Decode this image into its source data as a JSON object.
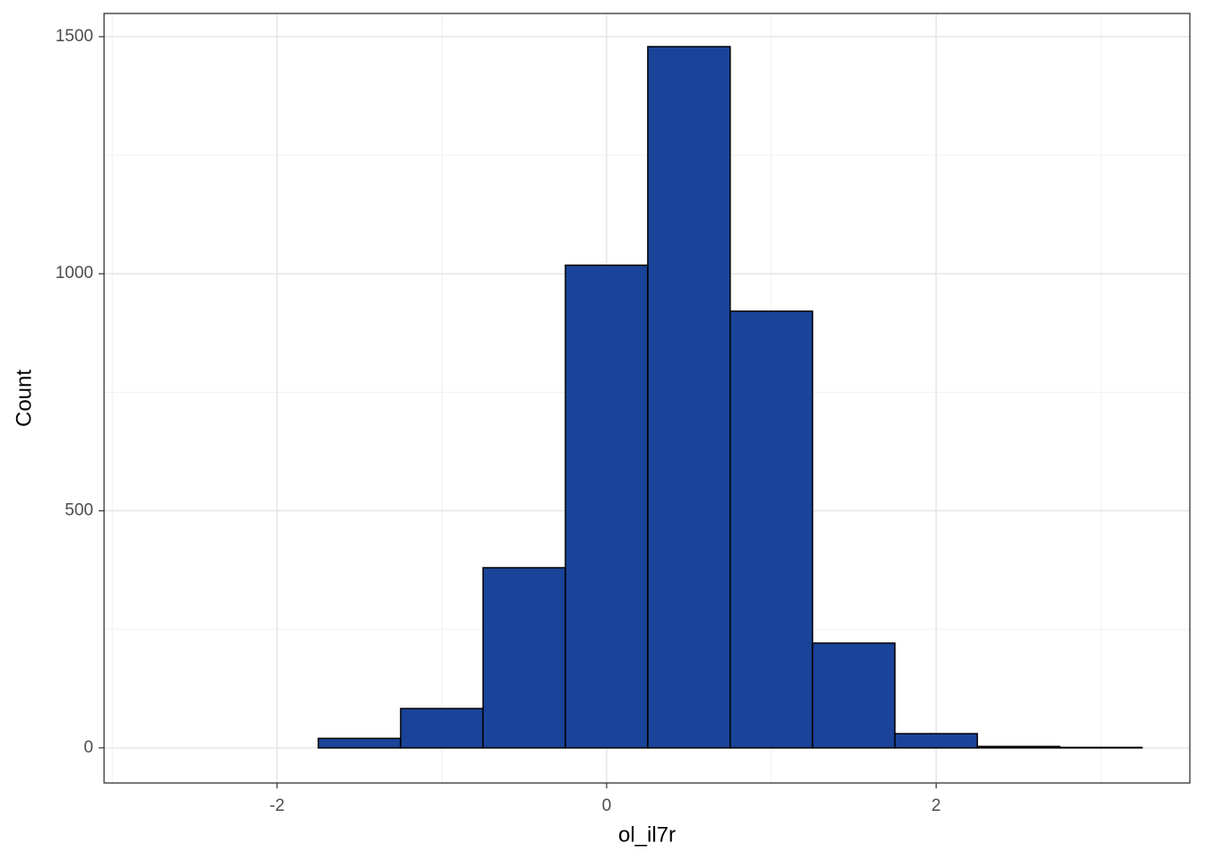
{
  "chart_data": {
    "type": "histogram",
    "x_label": "ol_il7r",
    "y_label": "Count",
    "bins": [
      -2.75,
      -2.25,
      -1.75,
      -1.25,
      -0.75,
      -0.25,
      0.25,
      0.75,
      1.25,
      1.75,
      2.25,
      2.75,
      3.25
    ],
    "values": [
      0,
      0,
      20,
      83,
      380,
      1018,
      1479,
      921,
      221,
      30,
      3,
      1
    ],
    "color": "#1a4499",
    "edge_color": "#000000",
    "xlim": [
      -3.05,
      3.54
    ],
    "ylim": [
      -74,
      1549
    ],
    "xticks": [
      -2,
      0,
      2
    ],
    "yticks": [
      0,
      500,
      1000,
      1500
    ],
    "grid": true
  }
}
